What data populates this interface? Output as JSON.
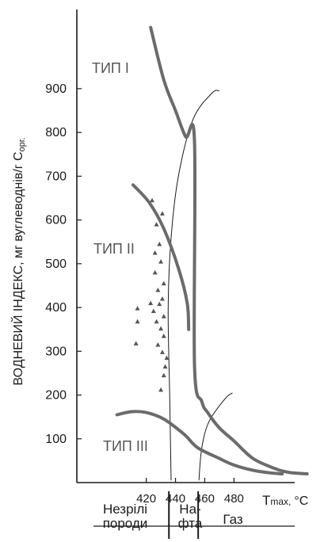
{
  "chart_data": {
    "type": "scatter",
    "ylabel": "ВОДНЕВИЙ ІНДЕКС,  мг вуглеводнів/г C",
    "ylabel_sub": "орг.",
    "xlabel": "T",
    "xlabel_sub": "max,",
    "xlabel_unit": "°C",
    "x_ticks": [
      420,
      440,
      460,
      480
    ],
    "y_ticks": [
      100,
      200,
      300,
      400,
      500,
      600,
      700,
      800,
      900
    ],
    "xlim": [
      385,
      515
    ],
    "ylim": [
      0,
      1070
    ],
    "zones": [
      {
        "label": "Незрілі\nпороди"
      },
      {
        "label": "На-\nфта"
      },
      {
        "label": "Газ"
      }
    ],
    "types": [
      {
        "name": "ТИП I",
        "points": [
          [
            423,
            1040
          ],
          [
            432,
            920
          ],
          [
            440,
            850
          ],
          [
            447,
            790
          ],
          [
            453,
            780
          ],
          [
            453,
            270
          ],
          [
            458,
            185
          ],
          [
            462,
            160
          ],
          [
            470,
            125
          ],
          [
            480,
            95
          ],
          [
            493,
            55
          ],
          [
            508,
            32
          ],
          [
            515,
            25
          ],
          [
            520,
            22
          ],
          [
            530,
            20
          ]
        ]
      },
      {
        "name": "ТИП II",
        "points": [
          [
            411,
            680
          ],
          [
            422,
            640
          ],
          [
            432,
            580
          ],
          [
            442,
            490
          ],
          [
            448,
            410
          ],
          [
            449,
            350
          ]
        ]
      },
      {
        "name": "ТИП III",
        "points": [
          [
            400,
            155
          ],
          [
            410,
            162
          ],
          [
            420,
            160
          ],
          [
            432,
            145
          ],
          [
            446,
            110
          ],
          [
            455,
            80
          ],
          [
            470,
            55
          ],
          [
            480,
            40
          ],
          [
            493,
            28
          ],
          [
            505,
            22
          ],
          [
            513,
            20
          ]
        ]
      }
    ],
    "thin_curves": [
      [
        [
          437,
          5
        ],
        [
          436,
          200
        ],
        [
          435,
          400
        ],
        [
          437,
          560
        ],
        [
          442,
          700
        ],
        [
          452,
          830
        ],
        [
          465,
          890
        ],
        [
          470,
          895
        ]
      ],
      [
        [
          456,
          5
        ],
        [
          458,
          80
        ],
        [
          463,
          140
        ],
        [
          474,
          192
        ],
        [
          479,
          205
        ]
      ]
    ],
    "samples": [
      [
        424,
        645
      ],
      [
        431,
        615
      ],
      [
        427,
        590
      ],
      [
        429,
        545
      ],
      [
        426,
        525
      ],
      [
        430,
        505
      ],
      [
        426,
        480
      ],
      [
        432,
        455
      ],
      [
        428,
        440
      ],
      [
        423,
        410
      ],
      [
        431,
        420
      ],
      [
        429,
        408
      ],
      [
        414,
        398
      ],
      [
        425,
        392
      ],
      [
        432,
        380
      ],
      [
        427,
        368
      ],
      [
        414,
        368
      ],
      [
        430,
        352
      ],
      [
        432,
        335
      ],
      [
        413,
        318
      ],
      [
        428,
        315
      ],
      [
        431,
        298
      ],
      [
        434,
        285
      ],
      [
        433,
        265
      ],
      [
        432,
        245
      ],
      [
        430,
        212
      ]
    ]
  }
}
